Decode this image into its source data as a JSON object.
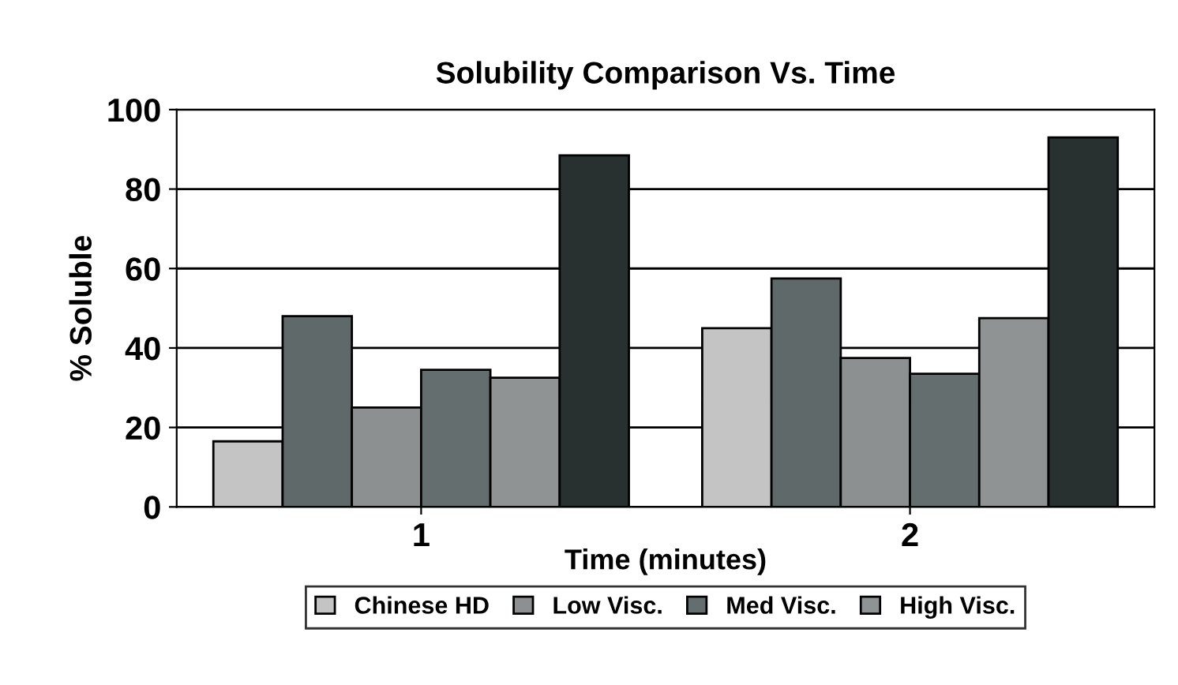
{
  "chart_data": {
    "type": "bar",
    "title": "Solubility Comparison Vs. Time",
    "xlabel": "Time (minutes)",
    "ylabel": "% Soluble",
    "categories": [
      "1",
      "2"
    ],
    "series": [
      {
        "name": "Chinese HD",
        "color": "#c4c4c4",
        "values": [
          16.5,
          45
        ]
      },
      {
        "color": "#5f6969",
        "values": [
          48,
          57.5
        ]
      },
      {
        "name": "Low Visc.",
        "color": "#8c9090",
        "values": [
          25,
          37.5
        ]
      },
      {
        "name": "Med Visc.",
        "color": "#646e6e",
        "values": [
          34.5,
          33.5
        ]
      },
      {
        "name": "High Visc.",
        "color": "#8f9393",
        "values": [
          32.5,
          47.5
        ]
      },
      {
        "color": "#283030",
        "values": [
          88.5,
          93
        ]
      }
    ],
    "ylim": [
      0,
      100
    ],
    "yticks": [
      0,
      20,
      40,
      60,
      80,
      100
    ],
    "grid": "y",
    "legend": "bottom"
  }
}
